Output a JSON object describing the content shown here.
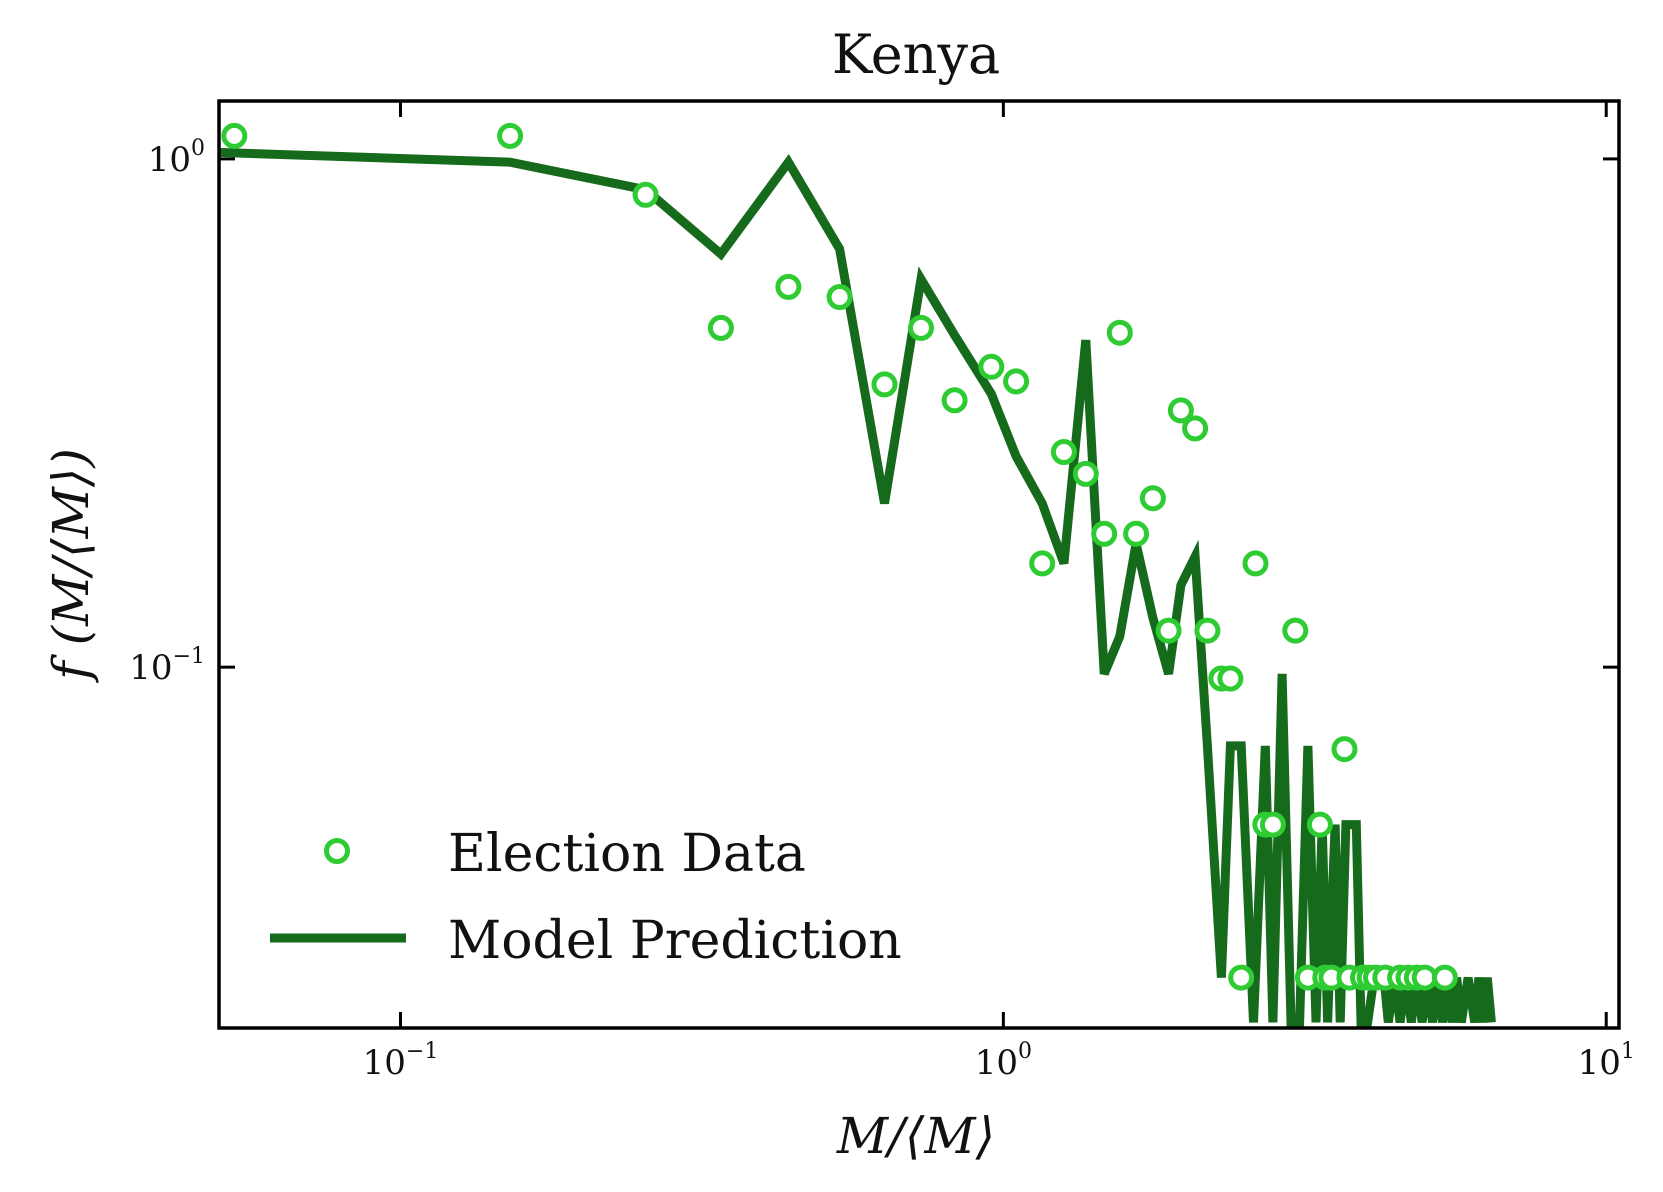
{
  "chart_data": {
    "type": "scatter+line",
    "title": "Kenya",
    "xlabel": "M/⟨M⟩",
    "ylabel": "f (M/⟨M⟩)",
    "xscale": "log",
    "yscale": "log",
    "xlim": [
      0.05,
      10.5
    ],
    "ylim": [
      0.0195,
      1.3
    ],
    "x_ticks": [
      {
        "value": 0.1,
        "base": "10",
        "exp": "−1"
      },
      {
        "value": 1,
        "base": "10",
        "exp": "0"
      },
      {
        "value": 10,
        "base": "10",
        "exp": "1"
      }
    ],
    "y_ticks": [
      {
        "value": 0.1,
        "base": "10",
        "exp": "−1"
      },
      {
        "value": 1,
        "base": "10",
        "exp": "0"
      }
    ],
    "legend_position": "bottom-left",
    "colors": {
      "data": "#2ecc32",
      "model": "#166a1c",
      "axes": "#000000"
    },
    "series": [
      {
        "name": "Election Data",
        "kind": "scatter",
        "marker": "hollow-circle",
        "points": [
          [
            0.053,
            1.11
          ],
          [
            0.152,
            1.11
          ],
          [
            0.255,
            0.85
          ],
          [
            0.34,
            0.465
          ],
          [
            0.44,
            0.56
          ],
          [
            0.535,
            0.535
          ],
          [
            0.635,
            0.36
          ],
          [
            0.73,
            0.465
          ],
          [
            0.83,
            0.335
          ],
          [
            0.955,
            0.39
          ],
          [
            1.05,
            0.365
          ],
          [
            1.16,
            0.16
          ],
          [
            1.26,
            0.265
          ],
          [
            1.37,
            0.24
          ],
          [
            1.47,
            0.183
          ],
          [
            1.56,
            0.455
          ],
          [
            1.66,
            0.183
          ],
          [
            1.77,
            0.215
          ],
          [
            1.88,
            0.118
          ],
          [
            1.97,
            0.32
          ],
          [
            2.08,
            0.295
          ],
          [
            2.18,
            0.118
          ],
          [
            2.3,
            0.095
          ],
          [
            2.38,
            0.095
          ],
          [
            2.48,
            0.0245
          ],
          [
            2.62,
            0.16
          ],
          [
            2.72,
            0.049
          ],
          [
            2.8,
            0.049
          ],
          [
            3.05,
            0.118
          ],
          [
            3.2,
            0.0245
          ],
          [
            3.35,
            0.049
          ],
          [
            3.42,
            0.0245
          ],
          [
            3.5,
            0.0245
          ],
          [
            3.68,
            0.069
          ],
          [
            3.75,
            0.0245
          ],
          [
            3.95,
            0.0245
          ],
          [
            4.05,
            0.0245
          ],
          [
            4.15,
            0.0245
          ],
          [
            4.3,
            0.0245
          ],
          [
            4.55,
            0.0245
          ],
          [
            4.7,
            0.0245
          ],
          [
            4.85,
            0.0245
          ],
          [
            5.0,
            0.0245
          ],
          [
            5.4,
            0.0245
          ]
        ]
      },
      {
        "name": "Model Prediction",
        "kind": "line",
        "points": [
          [
            0.05,
            1.03
          ],
          [
            0.152,
            0.985
          ],
          [
            0.255,
            0.87
          ],
          [
            0.34,
            0.65
          ],
          [
            0.44,
            0.985
          ],
          [
            0.535,
            0.665
          ],
          [
            0.635,
            0.21
          ],
          [
            0.73,
            0.58
          ],
          [
            0.83,
            0.45
          ],
          [
            0.955,
            0.345
          ],
          [
            1.05,
            0.26
          ],
          [
            1.16,
            0.21
          ],
          [
            1.26,
            0.16
          ],
          [
            1.37,
            0.44
          ],
          [
            1.47,
            0.097
          ],
          [
            1.56,
            0.115
          ],
          [
            1.66,
            0.175
          ],
          [
            1.77,
            0.125
          ],
          [
            1.88,
            0.097
          ],
          [
            1.97,
            0.145
          ],
          [
            2.08,
            0.165
          ],
          [
            2.18,
            0.07
          ],
          [
            2.3,
            0.0245
          ],
          [
            2.38,
            0.07
          ],
          [
            2.48,
            0.07
          ],
          [
            2.6,
            0.02
          ],
          [
            2.72,
            0.07
          ],
          [
            2.8,
            0.02
          ],
          [
            2.9,
            0.097
          ],
          [
            3.0,
            0.02
          ],
          [
            3.1,
            0.02
          ],
          [
            3.2,
            0.07
          ],
          [
            3.3,
            0.02
          ],
          [
            3.38,
            0.049
          ],
          [
            3.45,
            0.02
          ],
          [
            3.55,
            0.049
          ],
          [
            3.62,
            0.02
          ],
          [
            3.7,
            0.049
          ],
          [
            3.78,
            0.049
          ],
          [
            3.85,
            0.049
          ],
          [
            3.92,
            0.02
          ],
          [
            4.02,
            0.02
          ],
          [
            4.12,
            0.0245
          ],
          [
            4.2,
            0.0245
          ],
          [
            4.28,
            0.0245
          ],
          [
            4.35,
            0.02
          ],
          [
            4.45,
            0.0245
          ],
          [
            4.55,
            0.02
          ],
          [
            4.65,
            0.0245
          ],
          [
            4.75,
            0.02
          ],
          [
            4.85,
            0.0245
          ],
          [
            4.95,
            0.02
          ],
          [
            5.05,
            0.0245
          ],
          [
            5.15,
            0.02
          ],
          [
            5.25,
            0.0245
          ],
          [
            5.35,
            0.02
          ],
          [
            5.45,
            0.0245
          ],
          [
            5.55,
            0.02
          ],
          [
            5.65,
            0.0245
          ],
          [
            5.75,
            0.02
          ],
          [
            5.9,
            0.0245
          ],
          [
            6.05,
            0.02
          ],
          [
            6.15,
            0.0245
          ],
          [
            6.25,
            0.02
          ],
          [
            6.35,
            0.0245
          ],
          [
            6.45,
            0.02
          ]
        ]
      }
    ]
  }
}
